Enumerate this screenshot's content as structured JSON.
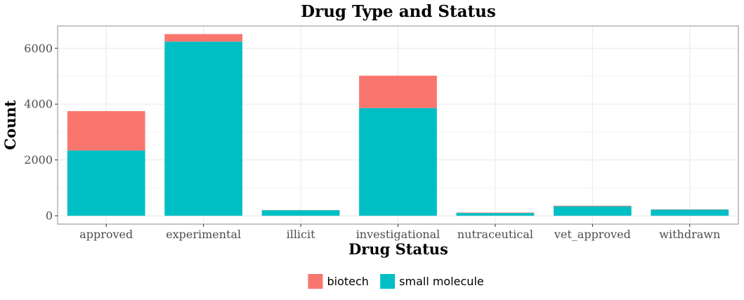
{
  "chart_data": {
    "type": "bar",
    "stacked": true,
    "title": "Drug Type and Status",
    "xlabel": "Drug Status",
    "ylabel": "Count",
    "categories": [
      "approved",
      "experimental",
      "illicit",
      "investigational",
      "nutraceutical",
      "vet_approved",
      "withdrawn"
    ],
    "series": [
      {
        "name": "small molecule",
        "color": "#00BFC4",
        "values": [
          2340,
          6240,
          200,
          3860,
          100,
          340,
          220
        ]
      },
      {
        "name": "biotech",
        "color": "#F8766D",
        "values": [
          1410,
          270,
          5,
          1160,
          15,
          20,
          10
        ]
      }
    ],
    "ylim": [
      -300,
      6800
    ],
    "yticks": [
      0,
      2000,
      4000,
      6000
    ],
    "ytick_labels": [
      "0",
      "2000",
      "4000",
      "6000"
    ],
    "grid": true,
    "legend": {
      "position": "bottom",
      "entries": [
        "biotech",
        "small molecule"
      ]
    }
  }
}
